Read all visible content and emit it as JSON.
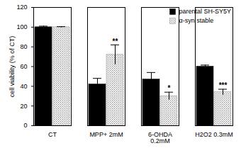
{
  "chart_data": {
    "type": "bar",
    "ylabel": "cell viability (% of CT)",
    "categories": [
      "CT",
      "MPP+ 2mM",
      "6-OHDA\n0.2mM",
      "H2O2 0.3mM"
    ],
    "series": [
      {
        "name": "parental SH-SY5Y",
        "color": "#000000",
        "line_style": "solid",
        "values": [
          100,
          42,
          47,
          60
        ],
        "errors": [
          1,
          6,
          7,
          1.5
        ]
      },
      {
        "name": "α-syn stable",
        "color": "#8c8c8c",
        "line_style": "dotted",
        "values": [
          100,
          72,
          30,
          34
        ],
        "errors": [
          0.5,
          10,
          4,
          3
        ]
      }
    ],
    "annotations": [
      {
        "text": "**",
        "category": "MPP+ 2mM",
        "series": "α-syn stable"
      },
      {
        "text": "*",
        "category": "6-OHDA\n0.2mM",
        "series": "α-syn stable"
      },
      {
        "text": "***",
        "category": "H2O2 0.3mM",
        "series": "α-syn stable"
      }
    ],
    "ylim": [
      0,
      120
    ],
    "yticks": [
      0,
      20,
      40,
      60,
      80,
      100,
      120
    ],
    "legend": "top-right"
  }
}
